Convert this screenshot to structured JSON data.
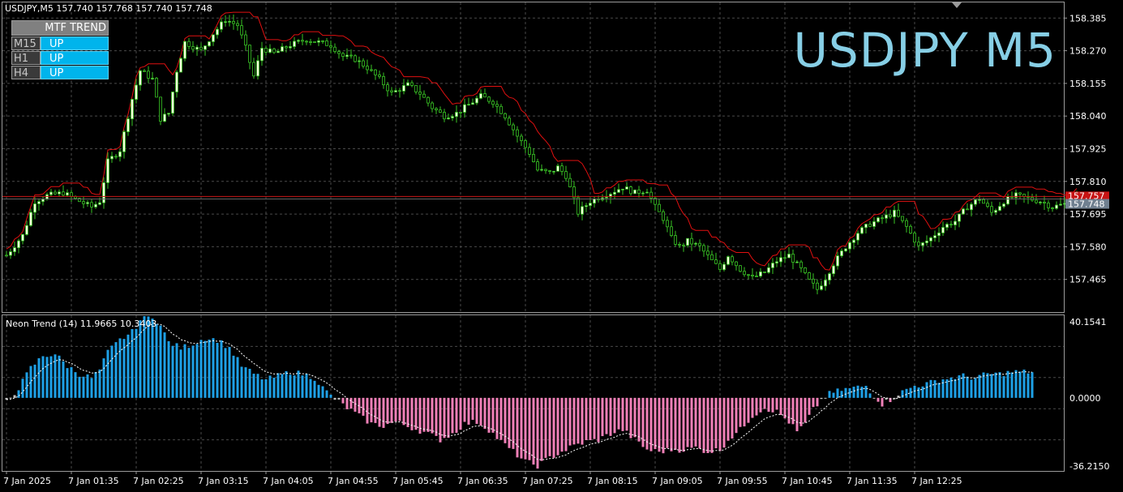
{
  "header": {
    "symbol_info": "USDJPY,M5  157.740 157.768 157.740 157.748",
    "big_title": "USDJPY M5"
  },
  "mtf_panel": {
    "title": "MTF TREND",
    "rows": [
      {
        "tf": "M15",
        "value": "UP"
      },
      {
        "tf": "H1",
        "value": "UP"
      },
      {
        "tf": "H4",
        "value": "UP"
      }
    ]
  },
  "oscillator": {
    "label": "Neon Trend (14) 11.9665 10.3403"
  },
  "colors": {
    "background": "#000000",
    "grid": "#4a4a4a",
    "candle_up": "#f5ffdc",
    "candle_outline": "#39c425",
    "upper_band": "#e01010",
    "price_line": "#c81414",
    "hist_up": "#1ea0e6",
    "hist_down": "#f080b8",
    "hist_neutral": "#c0c0c0",
    "signal": "#ffffff",
    "axis_text": "#ffffff"
  },
  "chart_data": [
    {
      "type": "candlestick",
      "title": "USDJPY M5",
      "ylim": [
        157.35,
        158.44
      ],
      "y_ticks": [
        "158.385",
        "158.270",
        "158.155",
        "158.040",
        "157.925",
        "157.810",
        "157.695",
        "157.580",
        "157.465"
      ],
      "y_tick_values": [
        158.385,
        158.27,
        158.155,
        158.04,
        157.925,
        157.81,
        157.695,
        157.58,
        157.465
      ],
      "x_ticks": [
        "7 Jan 2025",
        "7 Jan 01:35",
        "7 Jan 02:25",
        "7 Jan 03:15",
        "7 Jan 04:05",
        "7 Jan 04:55",
        "7 Jan 05:45",
        "7 Jan 06:35",
        "7 Jan 07:25",
        "7 Jan 08:15",
        "7 Jan 09:05",
        "7 Jan 09:55",
        "7 Jan 10:45",
        "7 Jan 11:35",
        "7 Jan 12:25"
      ],
      "x_tick_index": [
        0,
        16,
        32,
        48,
        64,
        80,
        96,
        112,
        128,
        144,
        160,
        176,
        192,
        208,
        224
      ],
      "price_labels": [
        "157.757",
        "157.748"
      ],
      "price_label_values": [
        157.757,
        157.748
      ],
      "close_path_keypoints": [
        [
          0,
          157.55
        ],
        [
          4,
          157.62
        ],
        [
          7,
          157.74
        ],
        [
          10,
          157.76
        ],
        [
          14,
          157.77
        ],
        [
          18,
          157.74
        ],
        [
          21,
          157.72
        ],
        [
          23,
          157.74
        ],
        [
          25,
          157.88
        ],
        [
          28,
          157.92
        ],
        [
          31,
          158.1
        ],
        [
          33,
          158.2
        ],
        [
          36,
          158.17
        ],
        [
          38,
          158.03
        ],
        [
          40,
          158.05
        ],
        [
          42,
          158.2
        ],
        [
          44,
          158.3
        ],
        [
          48,
          158.27
        ],
        [
          51,
          158.33
        ],
        [
          54,
          158.38
        ],
        [
          57,
          158.36
        ],
        [
          59,
          158.28
        ],
        [
          61,
          158.18
        ],
        [
          63,
          158.28
        ],
        [
          66,
          158.26
        ],
        [
          70,
          158.29
        ],
        [
          74,
          158.31
        ],
        [
          77,
          158.3
        ],
        [
          80,
          158.29
        ],
        [
          83,
          158.25
        ],
        [
          86,
          158.24
        ],
        [
          89,
          158.21
        ],
        [
          92,
          158.17
        ],
        [
          95,
          158.12
        ],
        [
          99,
          158.15
        ],
        [
          102,
          158.12
        ],
        [
          105,
          158.07
        ],
        [
          108,
          158.04
        ],
        [
          111,
          158.05
        ],
        [
          114,
          158.08
        ],
        [
          117,
          158.11
        ],
        [
          120,
          158.09
        ],
        [
          123,
          158.04
        ],
        [
          126,
          157.97
        ],
        [
          129,
          157.91
        ],
        [
          131,
          157.85
        ],
        [
          134,
          157.84
        ],
        [
          136,
          157.86
        ],
        [
          138,
          157.83
        ],
        [
          141,
          157.7
        ],
        [
          144,
          157.74
        ],
        [
          147,
          157.76
        ],
        [
          149,
          157.77
        ],
        [
          152,
          157.79
        ],
        [
          155,
          157.77
        ],
        [
          158,
          157.78
        ],
        [
          160,
          157.72
        ],
        [
          162,
          157.68
        ],
        [
          164,
          157.61
        ],
        [
          166,
          157.58
        ],
        [
          168,
          157.6
        ],
        [
          171,
          157.58
        ],
        [
          174,
          157.53
        ],
        [
          176,
          157.5
        ],
        [
          178,
          157.55
        ],
        [
          181,
          157.5
        ],
        [
          184,
          157.47
        ],
        [
          187,
          157.49
        ],
        [
          190,
          157.53
        ],
        [
          193,
          157.55
        ],
        [
          196,
          157.5
        ],
        [
          198,
          157.46
        ],
        [
          200,
          157.43
        ],
        [
          202,
          157.47
        ],
        [
          204,
          157.52
        ],
        [
          207,
          157.58
        ],
        [
          210,
          157.63
        ],
        [
          213,
          157.66
        ],
        [
          216,
          157.68
        ],
        [
          219,
          157.7
        ],
        [
          222,
          157.65
        ],
        [
          225,
          157.58
        ],
        [
          228,
          157.61
        ],
        [
          231,
          157.65
        ],
        [
          234,
          157.67
        ],
        [
          237,
          157.72
        ],
        [
          240,
          157.75
        ],
        [
          243,
          157.7
        ],
        [
          246,
          157.74
        ],
        [
          249,
          157.76
        ],
        [
          252,
          157.75
        ],
        [
          255,
          157.74
        ],
        [
          258,
          157.72
        ],
        [
          261,
          157.73
        ],
        [
          264,
          157.76
        ]
      ],
      "oscillator_keypoints": [
        [
          0,
          -2
        ],
        [
          3,
          5
        ],
        [
          6,
          15
        ],
        [
          9,
          21
        ],
        [
          12,
          22
        ],
        [
          15,
          16
        ],
        [
          18,
          12
        ],
        [
          21,
          10
        ],
        [
          23,
          14
        ],
        [
          25,
          23
        ],
        [
          28,
          29
        ],
        [
          31,
          33
        ],
        [
          33,
          39
        ],
        [
          36,
          41
        ],
        [
          38,
          36
        ],
        [
          40,
          28
        ],
        [
          43,
          25
        ],
        [
          46,
          27
        ],
        [
          49,
          30
        ],
        [
          52,
          29
        ],
        [
          55,
          25
        ],
        [
          58,
          16
        ],
        [
          61,
          12
        ],
        [
          64,
          9
        ],
        [
          67,
          11
        ],
        [
          70,
          13
        ],
        [
          73,
          12
        ],
        [
          76,
          10
        ],
        [
          78,
          5
        ],
        [
          80,
          1
        ],
        [
          82,
          -2
        ],
        [
          84,
          -5
        ],
        [
          87,
          -9
        ],
        [
          90,
          -13
        ],
        [
          93,
          -14
        ],
        [
          96,
          -12
        ],
        [
          100,
          -15
        ],
        [
          104,
          -18
        ],
        [
          107,
          -21
        ],
        [
          110,
          -18
        ],
        [
          113,
          -13
        ],
        [
          116,
          -12
        ],
        [
          119,
          -16
        ],
        [
          122,
          -22
        ],
        [
          125,
          -27
        ],
        [
          128,
          -32
        ],
        [
          131,
          -34
        ],
        [
          134,
          -30
        ],
        [
          137,
          -27
        ],
        [
          140,
          -24
        ],
        [
          143,
          -22
        ],
        [
          146,
          -21
        ],
        [
          149,
          -18
        ],
        [
          152,
          -16
        ],
        [
          155,
          -21
        ],
        [
          158,
          -26
        ],
        [
          161,
          -27
        ],
        [
          164,
          -26
        ],
        [
          167,
          -26
        ],
        [
          170,
          -25
        ],
        [
          173,
          -27
        ],
        [
          176,
          -26
        ],
        [
          178,
          -21
        ],
        [
          181,
          -16
        ],
        [
          184,
          -9
        ],
        [
          187,
          -5
        ],
        [
          190,
          -7
        ],
        [
          193,
          -12
        ],
        [
          195,
          -17
        ],
        [
          197,
          -13
        ],
        [
          199,
          -6
        ],
        [
          201,
          -1
        ],
        [
          203,
          2
        ],
        [
          206,
          4
        ],
        [
          209,
          5
        ],
        [
          212,
          6
        ],
        [
          214,
          1
        ],
        [
          216,
          -3
        ],
        [
          218,
          -1
        ],
        [
          220,
          2
        ],
        [
          222,
          4
        ],
        [
          224,
          6
        ],
        [
          227,
          7
        ],
        [
          230,
          9
        ],
        [
          233,
          10
        ],
        [
          236,
          11
        ],
        [
          239,
          10
        ],
        [
          242,
          12
        ],
        [
          245,
          12
        ],
        [
          248,
          13
        ],
        [
          251,
          13
        ],
        [
          254,
          13
        ]
      ],
      "oscillator_ylim": [
        -36.215,
        40.1541
      ],
      "oscillator_ticks": [
        "40.1541",
        "0.0000",
        "-36.2150"
      ],
      "oscillator_tick_values": [
        40.1541,
        0,
        -36.215
      ],
      "series": [
        {
          "name": "Candles",
          "count": 265
        },
        {
          "name": "Neon Trend (14)",
          "bars": 254
        }
      ]
    }
  ]
}
